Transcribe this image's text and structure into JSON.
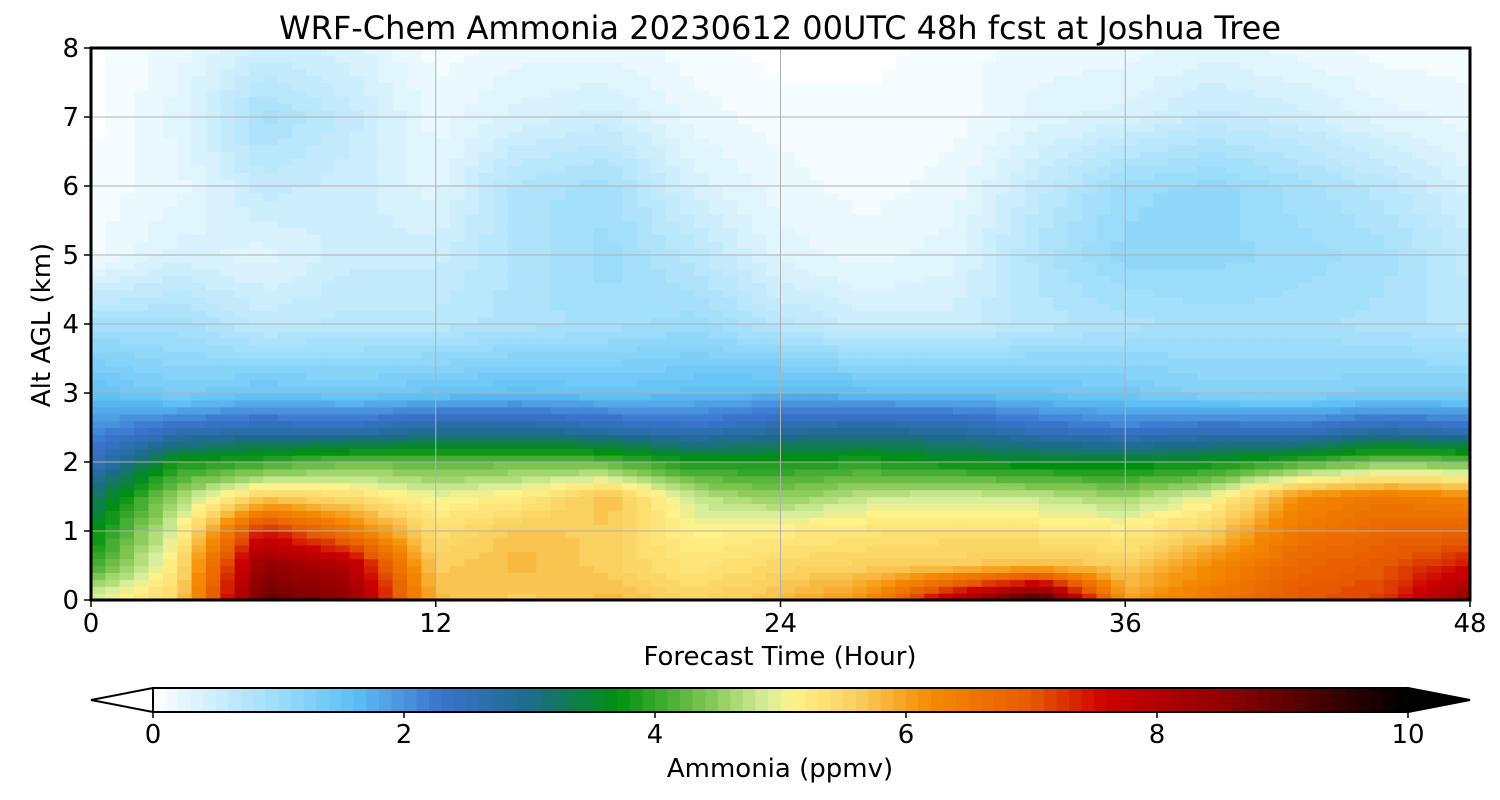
{
  "chart_data": {
    "type": "heatmap",
    "title": "WRF-Chem Ammonia  20230612 00UTC 48h fcst at Joshua Tree",
    "xlabel": "Forecast Time (Hour)",
    "ylabel": "Alt AGL (km)",
    "xlim": [
      0,
      48
    ],
    "ylim": [
      0,
      8
    ],
    "xticks": [
      0,
      12,
      24,
      36,
      48
    ],
    "yticks": [
      0,
      1,
      2,
      3,
      4,
      5,
      6,
      7,
      8
    ],
    "grid": true,
    "x_hours": [
      0,
      3,
      6,
      9,
      12,
      15,
      18,
      21,
      24,
      27,
      30,
      33,
      36,
      39,
      42,
      45,
      48
    ],
    "z_levels_km": [
      0,
      0.5,
      1,
      1.5,
      2,
      2.5,
      3,
      4,
      5,
      6,
      7,
      8
    ],
    "values_ppmv": [
      [
        5.0,
        5.5,
        9.0,
        8.5,
        5.8,
        5.6,
        5.8,
        5.5,
        5.8,
        6.2,
        8.0,
        9.5,
        6.0,
        6.5,
        7.0,
        7.2,
        8.5
      ],
      [
        4.0,
        5.3,
        8.5,
        8.0,
        5.6,
        5.8,
        5.6,
        5.3,
        5.5,
        5.6,
        5.6,
        5.8,
        5.6,
        6.2,
        6.8,
        7.0,
        7.5
      ],
      [
        3.6,
        5.0,
        7.5,
        6.5,
        5.4,
        5.7,
        5.6,
        5.1,
        5.2,
        5.3,
        5.4,
        5.3,
        5.2,
        5.6,
        6.5,
        6.8,
        6.8
      ],
      [
        3.2,
        4.6,
        5.6,
        5.4,
        5.0,
        5.2,
        5.8,
        4.8,
        4.5,
        4.8,
        4.9,
        4.8,
        4.6,
        5.0,
        6.2,
        6.5,
        6.3
      ],
      [
        2.4,
        3.8,
        4.0,
        4.3,
        4.2,
        4.3,
        4.2,
        3.8,
        3.8,
        3.9,
        3.7,
        3.6,
        3.6,
        3.7,
        4.0,
        4.4,
        4.3
      ],
      [
        2.0,
        2.4,
        2.6,
        2.5,
        2.8,
        2.8,
        2.6,
        2.4,
        2.7,
        2.8,
        2.7,
        2.4,
        2.2,
        2.4,
        2.3,
        2.6,
        2.4
      ],
      [
        1.6,
        1.3,
        1.5,
        1.4,
        1.5,
        1.6,
        1.5,
        1.6,
        1.7,
        1.6,
        1.6,
        1.5,
        1.4,
        1.2,
        1.2,
        1.3,
        1.3
      ],
      [
        0.9,
        0.9,
        0.6,
        0.7,
        0.7,
        0.8,
        0.9,
        1.0,
        0.7,
        0.5,
        0.5,
        0.7,
        0.8,
        0.9,
        0.9,
        0.8,
        0.7
      ],
      [
        0.1,
        0.4,
        0.3,
        0.5,
        0.5,
        0.8,
        1.0,
        0.7,
        0.3,
        0.2,
        0.3,
        0.8,
        1.1,
        1.1,
        1.0,
        0.9,
        0.6
      ],
      [
        0.1,
        0.2,
        0.6,
        0.5,
        0.3,
        0.8,
        0.9,
        0.4,
        0.2,
        0.1,
        0.2,
        0.6,
        1.0,
        1.1,
        0.9,
        0.7,
        0.4
      ],
      [
        0.0,
        0.3,
        0.9,
        0.6,
        0.2,
        0.4,
        0.5,
        0.2,
        0.1,
        0.1,
        0.1,
        0.3,
        0.4,
        0.6,
        0.5,
        0.3,
        0.2
      ],
      [
        0.0,
        0.2,
        0.5,
        0.4,
        0.1,
        0.2,
        0.2,
        0.1,
        0.0,
        0.0,
        0.1,
        0.2,
        0.2,
        0.3,
        0.2,
        0.1,
        0.1
      ]
    ],
    "colorbar": {
      "label": "Ammonia  (ppmv)",
      "range": [
        0,
        10
      ],
      "ticks": [
        0,
        2,
        4,
        6,
        8,
        10
      ],
      "extend": "both",
      "position": "bottom",
      "anchors": [
        {
          "v": 0.0,
          "color": "#ffffff"
        },
        {
          "v": 1.0,
          "color": "#9bdcfa"
        },
        {
          "v": 1.6,
          "color": "#5ec0f5"
        },
        {
          "v": 2.3,
          "color": "#3a72cc"
        },
        {
          "v": 3.0,
          "color": "#1d6b8c"
        },
        {
          "v": 3.7,
          "color": "#009010"
        },
        {
          "v": 4.4,
          "color": "#7dc450"
        },
        {
          "v": 4.9,
          "color": "#d8ee9a"
        },
        {
          "v": 5.1,
          "color": "#fff28a"
        },
        {
          "v": 5.6,
          "color": "#fad060"
        },
        {
          "v": 6.2,
          "color": "#f58a00"
        },
        {
          "v": 7.0,
          "color": "#e65a00"
        },
        {
          "v": 7.6,
          "color": "#cc0000"
        },
        {
          "v": 8.6,
          "color": "#8a0000"
        },
        {
          "v": 10.0,
          "color": "#000000"
        }
      ]
    }
  }
}
